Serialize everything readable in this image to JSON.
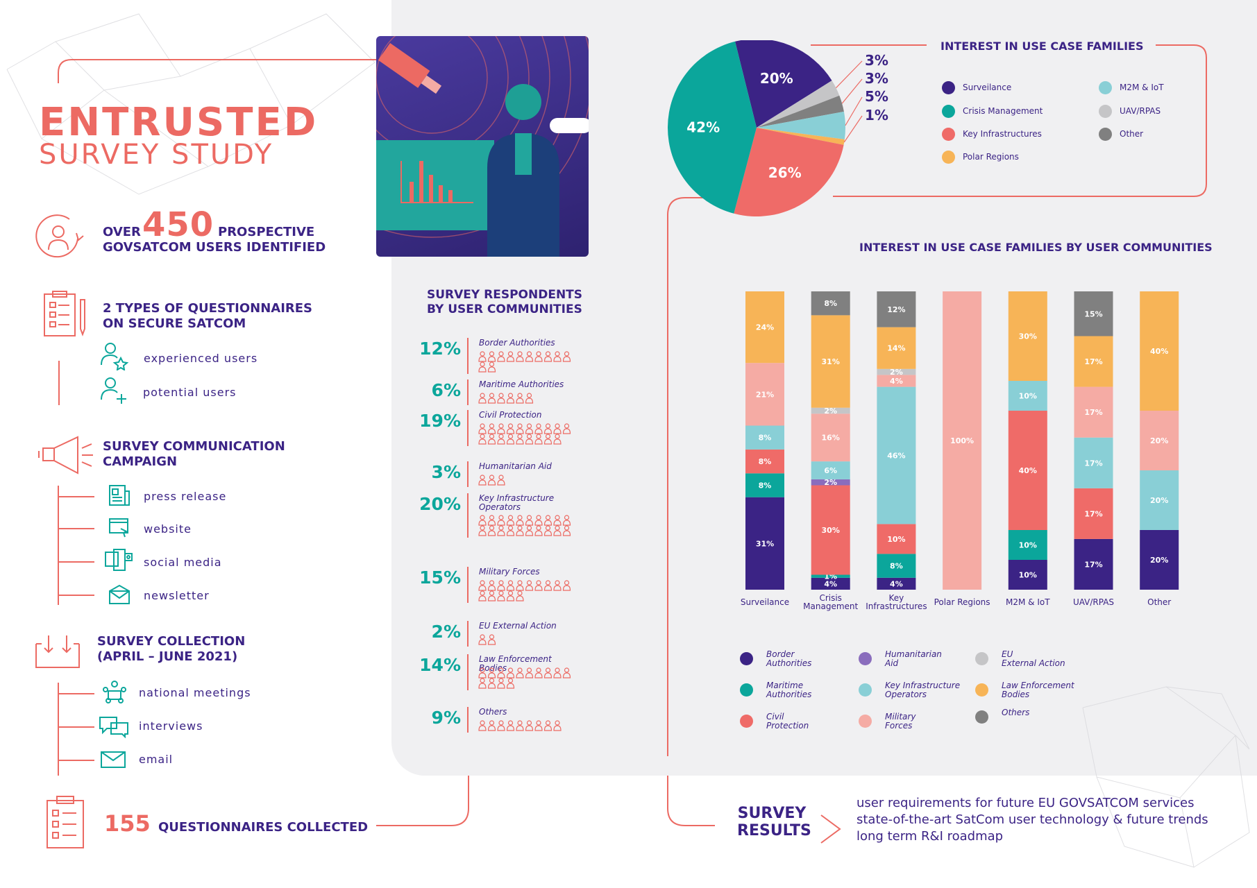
{
  "header": {
    "title": "ENTRUSTED",
    "subtitle": "SURVEY STUDY"
  },
  "users": {
    "over": "OVER",
    "number": "450",
    "prospective": "PROSPECTIVE",
    "line2": "GOVSATCOM USERS IDENTIFIED"
  },
  "questionnaires": {
    "line1": "2 TYPES OF QUESTIONNAIRES",
    "line2": "ON SECURE SATCOM",
    "types": [
      "experienced users",
      "potential users"
    ]
  },
  "campaign": {
    "line1": "SURVEY COMMUNICATION",
    "line2": "CAMPAIGN",
    "channels": [
      "press release",
      "website",
      "social media",
      "newsletter"
    ]
  },
  "collection": {
    "line1": "SURVEY COLLECTION",
    "line2": "(APRIL – JUNE 2021)",
    "methods": [
      "national meetings",
      "interviews",
      "email"
    ]
  },
  "collected": {
    "number": "155",
    "label": "QUESTIONNAIRES COLLECTED"
  },
  "respondents": {
    "title1": "SURVEY RESPONDENTS",
    "title2": "BY USER COMMUNITIES",
    "rows": [
      {
        "pct": "12%",
        "value": 12,
        "label": "Border Authorities"
      },
      {
        "pct": "6%",
        "value": 6,
        "label": "Maritime Authorities"
      },
      {
        "pct": "19%",
        "value": 19,
        "label": "Civil Protection"
      },
      {
        "pct": "3%",
        "value": 3,
        "label": "Humanitarian Aid"
      },
      {
        "pct": "20%",
        "value": 20,
        "label": "Key Infrastructure Operators"
      },
      {
        "pct": "15%",
        "value": 15,
        "label": "Military Forces"
      },
      {
        "pct": "2%",
        "value": 2,
        "label": "EU External Action"
      },
      {
        "pct": "14%",
        "value": 14,
        "label": "Law Enforcement Bodies"
      },
      {
        "pct": "9%",
        "value": 9,
        "label": "Others"
      }
    ]
  },
  "pie": {
    "title": "INTEREST IN USE CASE FAMILIES",
    "legend": [
      {
        "name": "Surveilance",
        "color": "#3b2385"
      },
      {
        "name": "Crisis Management",
        "color": "#0ba69b"
      },
      {
        "name": "Key Infrastructures",
        "color": "#ef6b68"
      },
      {
        "name": "Polar Regions",
        "color": "#f7b457"
      },
      {
        "name": "M2M & IoT",
        "color": "#89cfd6"
      },
      {
        "name": "UAV/RPAS",
        "color": "#c5c5c7"
      },
      {
        "name": "Other",
        "color": "#808080"
      }
    ]
  },
  "bar": {
    "title": "INTEREST IN USE CASE FAMILIES BY USER COMMUNITIES",
    "legend": [
      {
        "name": "Border Authorities",
        "color": "#3b2385"
      },
      {
        "name": "Maritime Authorities",
        "color": "#0ba69b"
      },
      {
        "name": "Civil Protection",
        "color": "#ef6b68"
      },
      {
        "name": "Humanitarian Aid",
        "color": "#8a6dbd"
      },
      {
        "name": "Key Infrastructure Operators",
        "color": "#89cfd6"
      },
      {
        "name": "Military Forces",
        "color": "#f5aba4"
      },
      {
        "name": "EU External Action",
        "color": "#c5c5c7"
      },
      {
        "name": "Law Enforcement Bodies",
        "color": "#f7b457"
      },
      {
        "name": "Others",
        "color": "#808080"
      }
    ]
  },
  "chart_data": [
    {
      "type": "pie",
      "title": "INTEREST IN USE CASE FAMILIES",
      "categories": [
        "Surveilance",
        "Crisis Management",
        "Key Infrastructures",
        "Polar Regions",
        "M2M & IoT",
        "UAV/RPAS",
        "Other"
      ],
      "values": [
        20,
        42,
        26,
        1,
        5,
        3,
        3
      ],
      "labels": [
        "20%",
        "42%",
        "26%",
        "1%",
        "5%",
        "3%",
        "3%"
      ]
    },
    {
      "type": "bar",
      "stacked": true,
      "title": "INTEREST IN USE CASE FAMILIES BY USER COMMUNITIES",
      "categories": [
        "Surveilance",
        "Crisis Management",
        "Key Infrastructures",
        "Polar Regions",
        "M2M & IoT",
        "UAV/RPAS",
        "Other"
      ],
      "ylim": [
        0,
        100
      ],
      "series": [
        {
          "name": "Border Authorities",
          "values": [
            31,
            4,
            4,
            0,
            10,
            17,
            20
          ]
        },
        {
          "name": "Maritime Authorities",
          "values": [
            8,
            1,
            8,
            0,
            10,
            0,
            0
          ]
        },
        {
          "name": "Civil Protection",
          "values": [
            8,
            30,
            10,
            0,
            40,
            17,
            0
          ]
        },
        {
          "name": "Humanitarian Aid",
          "values": [
            0,
            2,
            0,
            0,
            0,
            0,
            0
          ]
        },
        {
          "name": "Key Infrastructure Operators",
          "values": [
            8,
            6,
            46,
            0,
            10,
            17,
            20
          ]
        },
        {
          "name": "Military Forces",
          "values": [
            21,
            16,
            4,
            100,
            0,
            17,
            20
          ]
        },
        {
          "name": "EU External Action",
          "values": [
            0,
            2,
            2,
            0,
            0,
            0,
            0
          ]
        },
        {
          "name": "Law Enforcement Bodies",
          "values": [
            24,
            31,
            14,
            0,
            30,
            17,
            40
          ]
        },
        {
          "name": "Others",
          "values": [
            0,
            8,
            12,
            0,
            0,
            15,
            0
          ]
        }
      ]
    },
    {
      "type": "bar",
      "title": "SURVEY RESPONDENTS BY USER COMMUNITIES",
      "categories": [
        "Border Authorities",
        "Maritime Authorities",
        "Civil Protection",
        "Humanitarian Aid",
        "Key Infrastructure Operators",
        "Military Forces",
        "EU External Action",
        "Law Enforcement Bodies",
        "Others"
      ],
      "values": [
        12,
        6,
        19,
        3,
        20,
        15,
        2,
        14,
        9
      ]
    }
  ],
  "results": {
    "title1": "SURVEY",
    "title2": "RESULTS",
    "lines": [
      "user requirements for future EU GOVSATCOM services",
      "state-of-the-art SatCom user technology & future trends",
      "long term R&I roadmap"
    ]
  },
  "colors": {
    "coral": "#ec6a63",
    "navy": "#3b2385",
    "teal": "#0ba69b",
    "panel": "#f0f0f2"
  }
}
